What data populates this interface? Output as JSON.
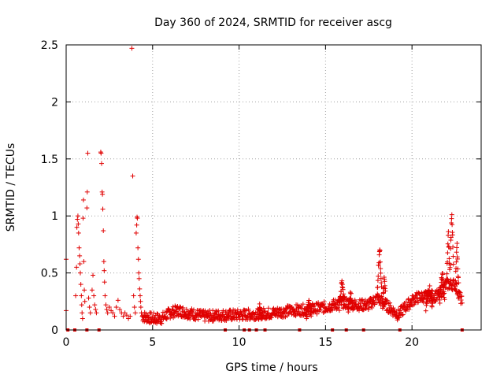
{
  "chart_data": {
    "type": "scatter",
    "title": "Day 360 of 2024, SRMTID for receiver ascg",
    "xlabel": "GPS time / hours",
    "ylabel": "SRMTID / TECUs",
    "xlim": [
      0,
      24
    ],
    "ylim": [
      0,
      2.5
    ],
    "xticks": [
      0,
      5,
      10,
      15,
      20
    ],
    "yticks": [
      0,
      0.5,
      1,
      1.5,
      2,
      2.5
    ],
    "xtick_labels": [
      "0",
      "5",
      "10",
      "15",
      "20"
    ],
    "ytick_labels": [
      "0",
      "0.5",
      "1",
      "1.5",
      "2",
      "2.5"
    ],
    "grid": true,
    "series": [
      {
        "name": "SRMTID",
        "color": "#e00000",
        "marker": "plus",
        "points": [
          [
            0.0,
            0.62
          ],
          [
            0.0,
            0.17
          ],
          [
            0.55,
            0.3
          ],
          [
            0.6,
            0.55
          ],
          [
            0.62,
            0.9
          ],
          [
            0.65,
            0.97
          ],
          [
            0.68,
            1.0
          ],
          [
            0.7,
            0.93
          ],
          [
            0.72,
            0.85
          ],
          [
            0.75,
            0.72
          ],
          [
            0.78,
            0.65
          ],
          [
            0.8,
            0.58
          ],
          [
            0.82,
            0.5
          ],
          [
            0.85,
            0.4
          ],
          [
            0.88,
            0.3
          ],
          [
            0.9,
            0.22
          ],
          [
            0.92,
            0.15
          ],
          [
            0.95,
            0.1
          ],
          [
            0.98,
            0.98
          ],
          [
            1.0,
            1.14
          ],
          [
            1.02,
            0.6
          ],
          [
            1.05,
            0.35
          ],
          [
            1.08,
            0.25
          ],
          [
            1.2,
            1.07
          ],
          [
            1.22,
            1.21
          ],
          [
            1.25,
            1.55
          ],
          [
            1.3,
            0.28
          ],
          [
            1.35,
            0.2
          ],
          [
            1.4,
            0.15
          ],
          [
            1.5,
            0.35
          ],
          [
            1.55,
            0.48
          ],
          [
            1.6,
            0.3
          ],
          [
            1.65,
            0.22
          ],
          [
            1.7,
            0.18
          ],
          [
            1.75,
            0.15
          ],
          [
            2.0,
            1.56
          ],
          [
            2.02,
            1.55
          ],
          [
            2.05,
            1.46
          ],
          [
            2.08,
            1.21
          ],
          [
            2.1,
            1.19
          ],
          [
            2.12,
            1.06
          ],
          [
            2.15,
            0.87
          ],
          [
            2.18,
            0.6
          ],
          [
            2.2,
            0.52
          ],
          [
            2.22,
            0.42
          ],
          [
            2.25,
            0.3
          ],
          [
            2.3,
            0.22
          ],
          [
            2.35,
            0.18
          ],
          [
            2.4,
            0.15
          ],
          [
            2.5,
            0.2
          ],
          [
            2.6,
            0.17
          ],
          [
            2.7,
            0.15
          ],
          [
            2.8,
            0.12
          ],
          [
            2.9,
            0.2
          ],
          [
            3.0,
            0.26
          ],
          [
            3.1,
            0.18
          ],
          [
            3.2,
            0.15
          ],
          [
            3.3,
            0.12
          ],
          [
            3.4,
            0.15
          ],
          [
            3.5,
            0.13
          ],
          [
            3.6,
            0.1
          ],
          [
            3.7,
            0.12
          ],
          [
            3.8,
            2.47
          ],
          [
            3.85,
            1.35
          ],
          [
            3.9,
            0.3
          ],
          [
            3.95,
            0.2
          ],
          [
            4.0,
            0.15
          ],
          [
            4.05,
            0.85
          ],
          [
            4.08,
            0.92
          ],
          [
            4.1,
            0.99
          ],
          [
            4.12,
            0.98
          ],
          [
            4.15,
            0.72
          ],
          [
            4.18,
            0.62
          ],
          [
            4.2,
            0.5
          ],
          [
            4.22,
            0.45
          ],
          [
            4.25,
            0.36
          ],
          [
            4.28,
            0.3
          ],
          [
            4.3,
            0.25
          ],
          [
            4.32,
            0.2
          ],
          [
            4.35,
            0.15
          ]
        ]
      }
    ],
    "gap_markers_x": [
      0.1,
      0.5,
      1.2,
      1.9,
      9.2,
      10.3,
      10.6,
      11.0,
      11.5,
      13.5,
      15.4,
      16.2,
      17.2,
      19.3,
      22.9
    ]
  }
}
